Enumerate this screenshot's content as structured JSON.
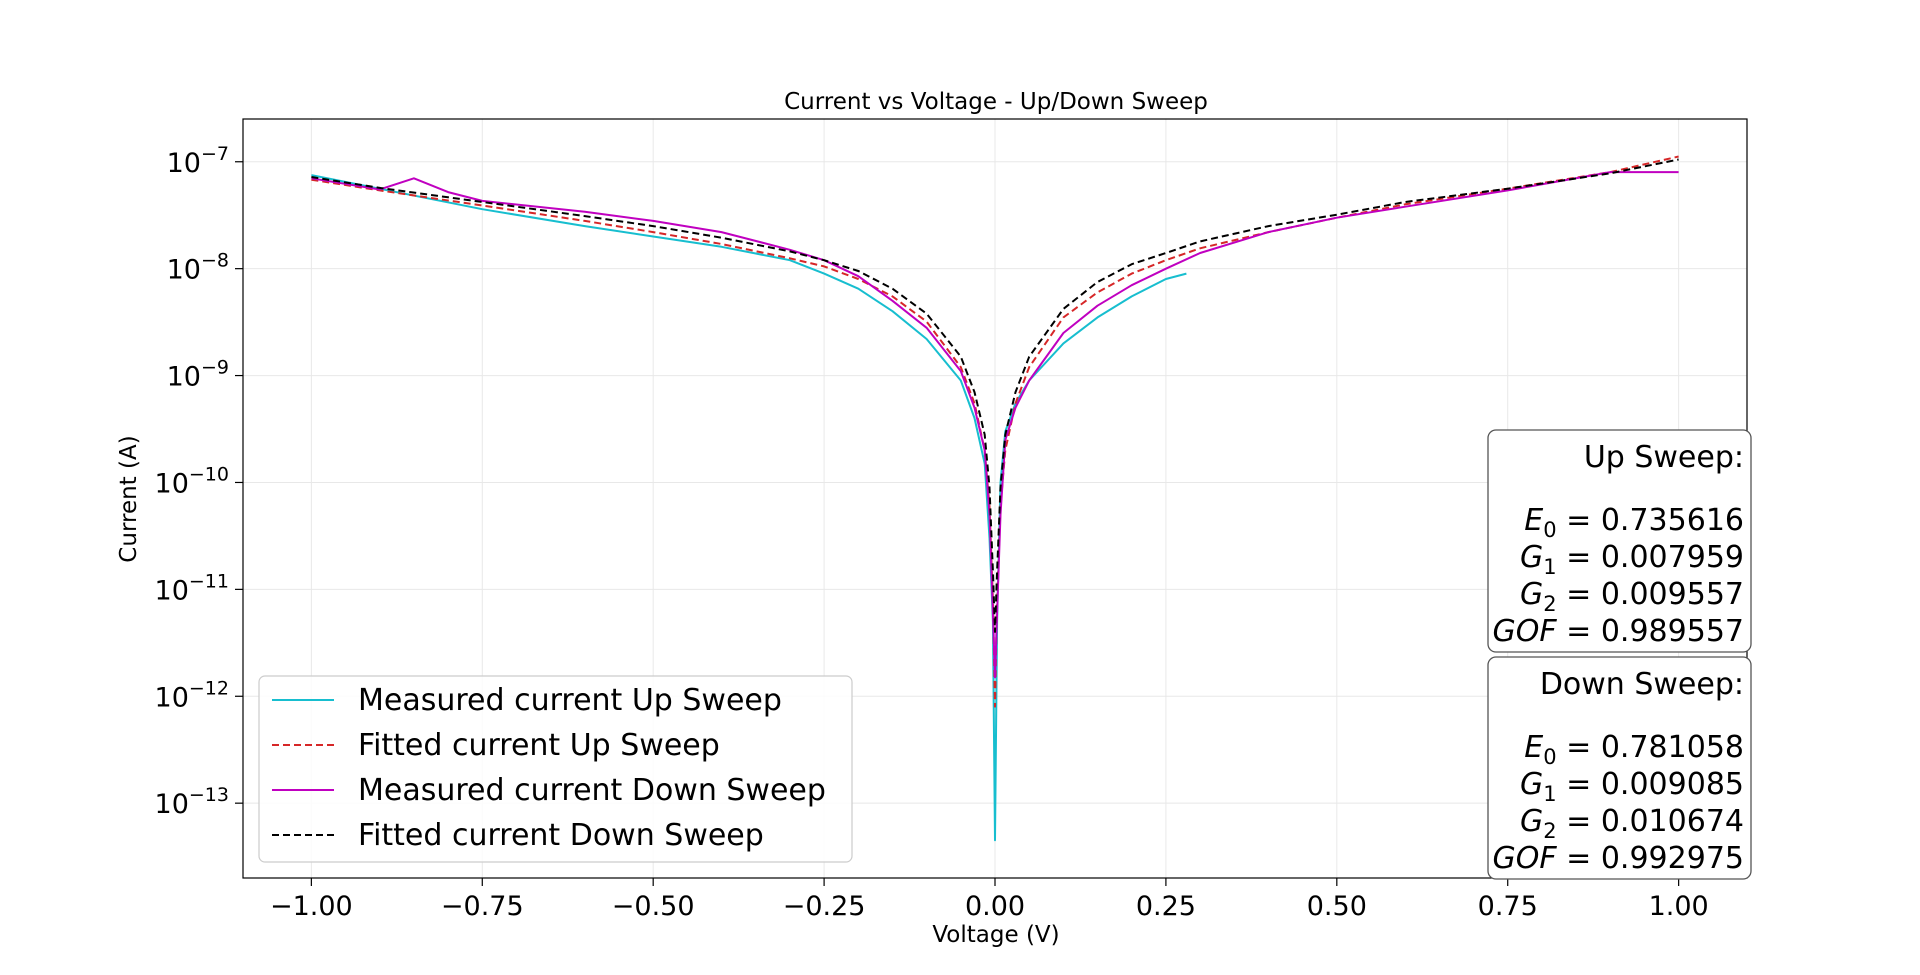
{
  "chart_data": {
    "type": "line",
    "title": "Current vs Voltage - Up/Down Sweep",
    "xlabel": "Voltage (V)",
    "ylabel": "Current (A)",
    "xlim": [
      -1.1,
      1.1
    ],
    "ylim_log10": [
      -13.7,
      -6.6
    ],
    "yscale": "log",
    "grid": true,
    "x_ticks": [
      -1.0,
      -0.75,
      -0.5,
      -0.25,
      0.0,
      0.25,
      0.5,
      0.75,
      1.0
    ],
    "x_tick_labels": [
      "−1.00",
      "−0.75",
      "−0.50",
      "−0.25",
      "0.00",
      "0.25",
      "0.50",
      "0.75",
      "1.00"
    ],
    "y_tick_exponents": [
      -7,
      -8,
      -9,
      -10,
      -11,
      -12,
      -13
    ],
    "y_tick_base": "10",
    "y_tick_labels": [
      "−7",
      "−8",
      "−9",
      "−10",
      "−11",
      "−12",
      "−13"
    ],
    "legend_position": "bottom-left",
    "series": [
      {
        "name": "Measured current Up Sweep",
        "color": "#17becf",
        "style": "solid",
        "x": [
          -1.0,
          -0.9,
          -0.75,
          -0.6,
          -0.5,
          -0.4,
          -0.3,
          -0.25,
          -0.2,
          -0.15,
          -0.1,
          -0.05,
          -0.03,
          -0.015,
          -0.008,
          -0.003,
          0.0,
          0.003,
          0.008,
          0.015,
          0.03,
          0.05,
          0.1,
          0.15,
          0.2,
          0.25,
          0.28
        ],
        "y": [
          7.5e-08,
          5.6e-08,
          3.6e-08,
          2.5e-08,
          2e-08,
          1.6e-08,
          1.2e-08,
          9e-09,
          6.5e-09,
          4e-09,
          2.2e-09,
          9e-10,
          4e-10,
          1.5e-10,
          3e-11,
          5e-12,
          4.5e-14,
          5e-12,
          1e-10,
          3e-10,
          5.5e-10,
          9e-10,
          2e-09,
          3.5e-09,
          5.5e-09,
          8e-09,
          9e-09
        ]
      },
      {
        "name": "Fitted current Up Sweep",
        "color": "#d62728",
        "style": "dashed",
        "x": [
          -1.0,
          -0.9,
          -0.75,
          -0.6,
          -0.5,
          -0.4,
          -0.3,
          -0.25,
          -0.2,
          -0.15,
          -0.1,
          -0.05,
          -0.03,
          -0.015,
          -0.008,
          -0.003,
          0.0,
          0.003,
          0.008,
          0.015,
          0.03,
          0.05,
          0.1,
          0.15,
          0.2,
          0.25,
          0.3,
          0.4,
          0.5,
          0.6,
          0.75,
          0.9,
          1.0
        ],
        "y": [
          6.8e-08,
          5.4e-08,
          3.9e-08,
          2.8e-08,
          2.2e-08,
          1.7e-08,
          1.25e-08,
          1.05e-08,
          8e-09,
          5.5e-09,
          3.2e-09,
          1.2e-09,
          5.5e-10,
          2e-10,
          6e-11,
          8e-12,
          8e-13,
          8e-12,
          6e-11,
          2e-10,
          5.5e-10,
          1.2e-09,
          3.5e-09,
          6e-09,
          9e-09,
          1.2e-08,
          1.55e-08,
          2.2e-08,
          3e-08,
          4e-08,
          5.6e-08,
          8e-08,
          1.12e-07
        ]
      },
      {
        "name": "Measured current Down Sweep",
        "color": "#c000c0",
        "style": "solid",
        "x": [
          -1.0,
          -0.9,
          -0.85,
          -0.8,
          -0.75,
          -0.6,
          -0.5,
          -0.4,
          -0.3,
          -0.25,
          -0.2,
          -0.15,
          -0.1,
          -0.05,
          -0.03,
          -0.015,
          -0.008,
          -0.003,
          0.0,
          0.003,
          0.008,
          0.015,
          0.03,
          0.05,
          0.1,
          0.15,
          0.2,
          0.25,
          0.3,
          0.4,
          0.5,
          0.6,
          0.75,
          0.9,
          1.0
        ],
        "y": [
          7e-08,
          5.5e-08,
          7e-08,
          5.2e-08,
          4.3e-08,
          3.4e-08,
          2.8e-08,
          2.2e-08,
          1.5e-08,
          1.2e-08,
          8.5e-09,
          5e-09,
          2.8e-09,
          1.1e-09,
          5e-10,
          2e-10,
          5e-11,
          6e-12,
          1.5e-12,
          6e-12,
          5e-11,
          2.5e-10,
          5e-10,
          9e-10,
          2.5e-09,
          4.5e-09,
          7e-09,
          1e-08,
          1.4e-08,
          2.2e-08,
          3e-08,
          3.8e-08,
          5.4e-08,
          8e-08,
          8e-08
        ]
      },
      {
        "name": "Fitted current Down Sweep",
        "color": "#000000",
        "style": "dashed",
        "x": [
          -1.0,
          -0.9,
          -0.75,
          -0.6,
          -0.5,
          -0.4,
          -0.3,
          -0.25,
          -0.2,
          -0.15,
          -0.1,
          -0.05,
          -0.03,
          -0.015,
          -0.008,
          -0.003,
          0.0,
          0.003,
          0.008,
          0.015,
          0.03,
          0.05,
          0.1,
          0.15,
          0.2,
          0.25,
          0.3,
          0.4,
          0.5,
          0.6,
          0.75,
          0.9,
          1.0
        ],
        "y": [
          7.2e-08,
          5.7e-08,
          4.2e-08,
          3.1e-08,
          2.5e-08,
          1.95e-08,
          1.45e-08,
          1.2e-08,
          9.5e-09,
          6.5e-09,
          3.8e-09,
          1.5e-09,
          7e-10,
          2.8e-10,
          9e-11,
          1.5e-11,
          4e-12,
          1.5e-11,
          9e-11,
          2.8e-10,
          7e-10,
          1.5e-09,
          4.2e-09,
          7.5e-09,
          1.1e-08,
          1.4e-08,
          1.8e-08,
          2.5e-08,
          3.2e-08,
          4.2e-08,
          5.6e-08,
          7.8e-08,
          1.05e-07
        ]
      }
    ],
    "annotations": [
      {
        "id": "up",
        "heading": "Up Sweep:",
        "params": [
          {
            "sym": "E",
            "sub": "0",
            "value": "0.735616"
          },
          {
            "sym": "G",
            "sub": "1",
            "value": "0.007959"
          },
          {
            "sym": "G",
            "sub": "2",
            "value": "0.009557"
          },
          {
            "sym": "GOF",
            "sub": "",
            "value": "0.989557"
          }
        ]
      },
      {
        "id": "down",
        "heading": "Down Sweep:",
        "params": [
          {
            "sym": "E",
            "sub": "0",
            "value": "0.781058"
          },
          {
            "sym": "G",
            "sub": "1",
            "value": "0.009085"
          },
          {
            "sym": "G",
            "sub": "2",
            "value": "0.010674"
          },
          {
            "sym": "GOF",
            "sub": "",
            "value": "0.992975"
          }
        ]
      }
    ]
  }
}
